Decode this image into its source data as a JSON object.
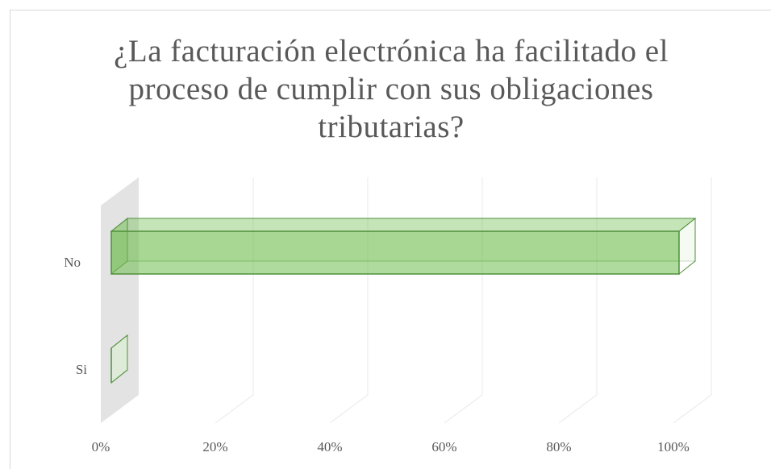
{
  "chart_data": {
    "type": "bar3d",
    "title": "¿La facturación electrónica ha facilitado el proceso de cumplir con sus obligaciones tributarias?",
    "categories": [
      "No",
      "Si"
    ],
    "values": [
      100,
      0
    ],
    "color": "#70be50",
    "xlim": [
      0,
      100
    ],
    "xticks": [
      {
        "value": 0,
        "label": "0%"
      },
      {
        "value": 20,
        "label": "20%"
      },
      {
        "value": 40,
        "label": "40%"
      },
      {
        "value": 60,
        "label": "60%"
      },
      {
        "value": 80,
        "label": "80%"
      },
      {
        "value": 100,
        "label": "100%"
      }
    ],
    "grid": true
  }
}
